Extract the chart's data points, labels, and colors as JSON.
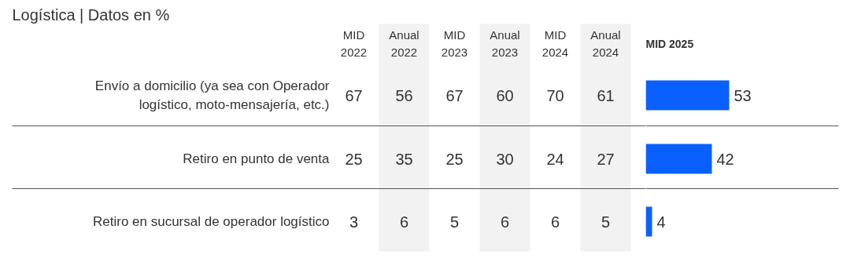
{
  "chart_data": [
    {
      "type": "heatmap",
      "data_labels": true,
      "title": "Logística | Datos en %",
      "categories": [
        "MID\n2022",
        "Anual\n2022",
        "MID\n2023",
        "Anual\n2023",
        "MID\n2024",
        "Anual\n2024"
      ],
      "y_categories": [
        "Envío a domicilio (ya sea con Operador\nlogístico, moto-mensajería, etc.)",
        "Retiro en punto de venta",
        "Retiro en sucursal de operador logístico"
      ],
      "cells": [
        [
          67,
          56,
          67,
          60,
          70,
          61
        ],
        [
          25,
          35,
          25,
          30,
          24,
          27
        ],
        [
          3,
          6,
          5,
          6,
          6,
          5
        ]
      ]
    },
    {
      "type": "bar",
      "orientation": "horizontal",
      "title": "MID 2025",
      "categories": [
        null,
        null,
        null
      ],
      "values": [
        53,
        42,
        4
      ],
      "color": "#0a60ff",
      "data_labels": true,
      "xlim": [
        0,
        125
      ],
      "tick_labels": false
    }
  ]
}
